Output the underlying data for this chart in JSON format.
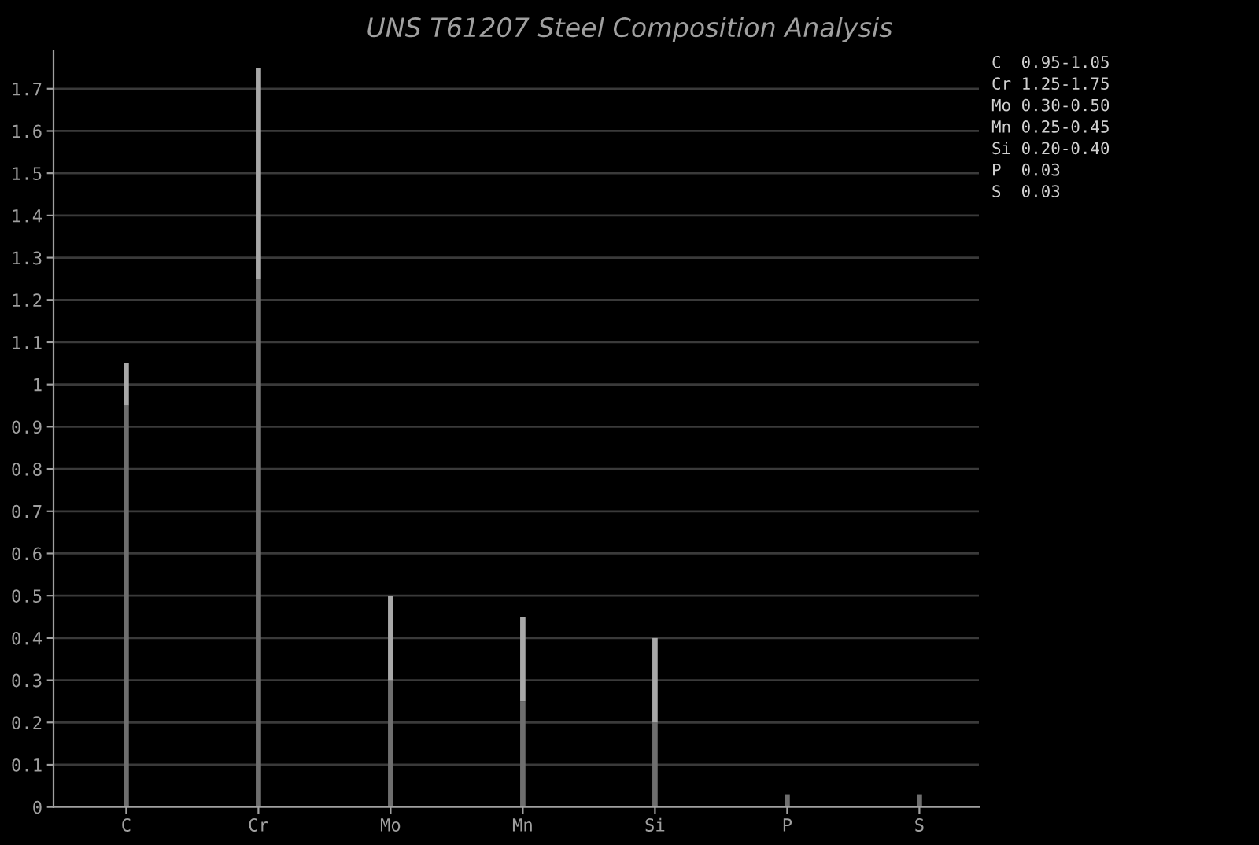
{
  "chart_data": {
    "type": "bar",
    "title": "UNS T61207 Steel Composition Analysis",
    "categories": [
      "C",
      "Cr",
      "Mo",
      "Mn",
      "Si",
      "P",
      "S"
    ],
    "stacked": true,
    "series": [
      {
        "color": "#6e6e6e",
        "values": [
          0.95,
          1.25,
          0.3,
          0.25,
          0.2,
          0.03,
          0.03
        ]
      },
      {
        "color": "#a8a8a8",
        "values": [
          0.1,
          0.5,
          0.2,
          0.2,
          0.2,
          0,
          0
        ]
      }
    ],
    "ylim": [
      0,
      1.79
    ],
    "yticks": [
      0,
      0.1,
      0.2,
      0.3,
      0.4,
      0.5,
      0.6,
      0.7,
      0.8,
      0.9,
      1,
      1.1,
      1.2,
      1.3,
      1.4,
      1.5,
      1.6,
      1.7
    ],
    "grid": "y",
    "annotations": [
      "C  0.95-1.05",
      "Cr 1.25-1.75",
      "Mo 0.30-0.50",
      "Mn 0.25-0.45",
      "Si 0.20-0.40",
      "P  0.03",
      "S  0.03"
    ]
  }
}
